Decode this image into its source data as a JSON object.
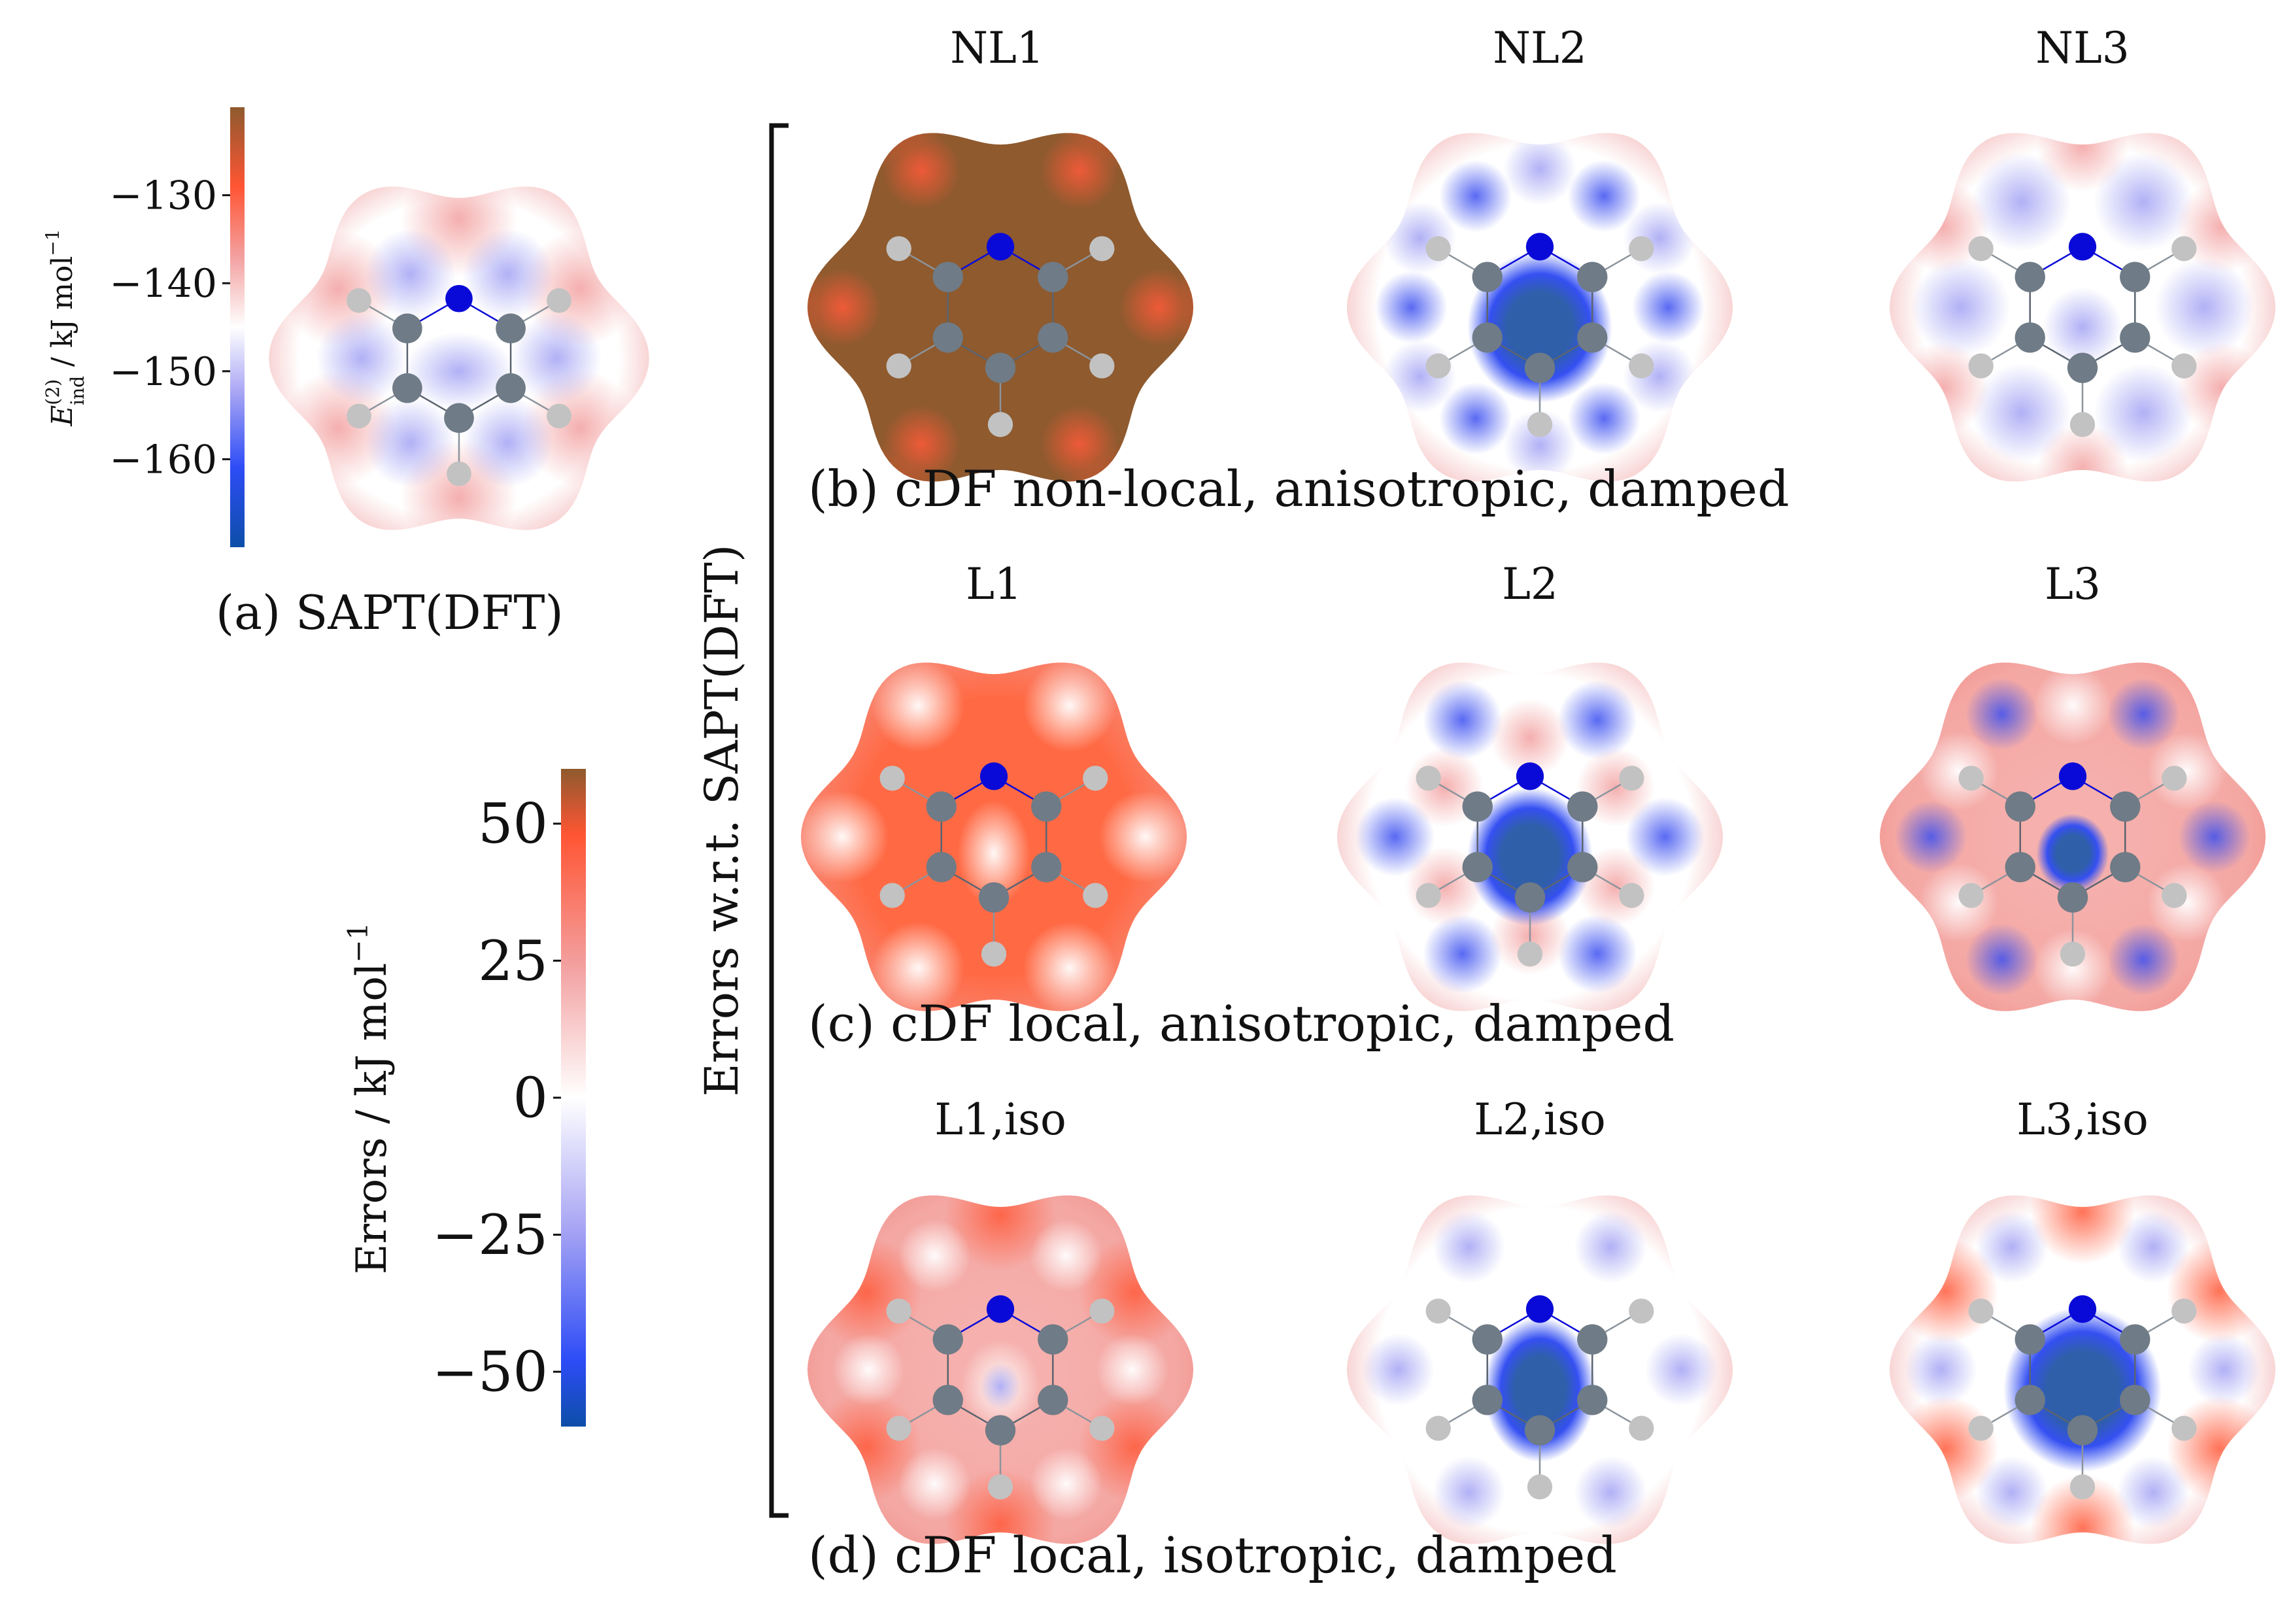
{
  "panel_a": {
    "caption": "(a) SAPT(DFT)",
    "colorbar": {
      "label_symbol": "E",
      "label_superscript": "(2)",
      "label_subscript": "ind",
      "label_units": " / kJ mol",
      "label_units_exp": "−1",
      "ticks": [
        "−130",
        "−140",
        "−150",
        "−160"
      ],
      "tick_values": [
        -130,
        -140,
        -150,
        -160
      ],
      "range": [
        -170,
        -120
      ]
    }
  },
  "error_colorbar": {
    "label": "Errors / kJ mol",
    "label_exp": "−1",
    "ticks": [
      "50",
      "25",
      "0",
      "−25",
      "−50"
    ],
    "tick_values": [
      50,
      25,
      0,
      -25,
      -50
    ],
    "range": [
      -60,
      60
    ]
  },
  "bracket_label": "Errors w.r.t. SAPT(DFT)",
  "rows": [
    {
      "caption": "(b) cDF non-local, anisotropic, damped",
      "titles": [
        "NL1",
        "NL2",
        "NL3"
      ]
    },
    {
      "caption": "(c) cDF local, anisotropic, damped",
      "titles": [
        "L1",
        "L2",
        "L3"
      ]
    },
    {
      "caption": "(d) cDF local, isotropic, damped",
      "titles": [
        "L1,iso",
        "L2,iso",
        "L3,iso"
      ]
    }
  ],
  "colors": {
    "deep_orange": "#8e5a2e",
    "red": "#ff5533",
    "pink": "#f5a3a3",
    "white": "#ffffff",
    "blue": "#2d4cf6",
    "deep_blue": "#1a4a96",
    "carbon": "#6f7b86",
    "nitrogen": "#0a0ad8",
    "hydrogen": "#c2c2c2"
  }
}
